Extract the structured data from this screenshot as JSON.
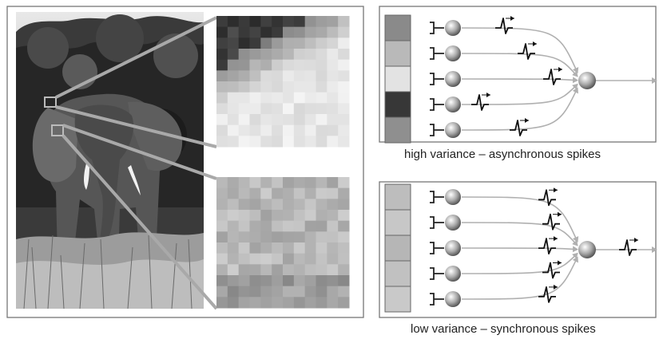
{
  "figure": {
    "photo_subject": "elephant",
    "top_patch": {
      "pattern": "high-variance-gradient"
    },
    "bottom_patch": {
      "pattern": "low-variance-uniform"
    }
  },
  "panels": [
    {
      "id": "high",
      "caption": "high variance – asynchronous spikes",
      "intensities": [
        "#8a8a8a",
        "#b9b9b9",
        "#e3e3e3",
        "#373737",
        "#8f8f8f"
      ],
      "spike_style": "asynchronous"
    },
    {
      "id": "low",
      "caption": "low variance – synchronous spikes",
      "intensities": [
        "#bdbdbd",
        "#c7c7c7",
        "#b6b6b6",
        "#c1c1c1",
        "#c9c9c9"
      ],
      "spike_style": "synchronous"
    }
  ],
  "colors": {
    "frame": "#777777",
    "connector": "#aaaaaa",
    "arrow": "#b0b0b0",
    "spike": "#111111"
  }
}
